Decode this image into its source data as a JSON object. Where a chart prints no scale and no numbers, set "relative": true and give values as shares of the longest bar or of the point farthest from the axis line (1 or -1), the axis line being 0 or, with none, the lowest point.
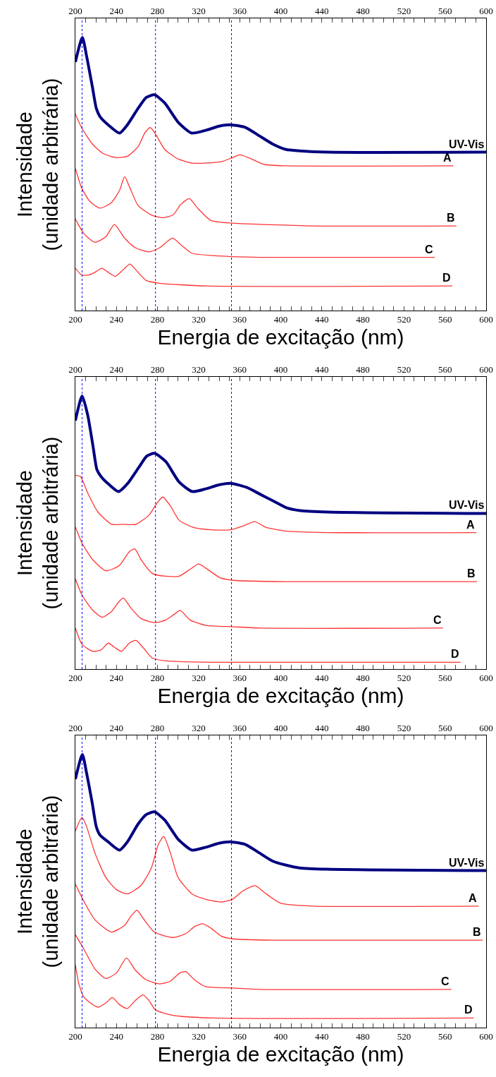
{
  "chart_data": [
    {
      "type": "line",
      "xlabel": "Energia de excitação (nm)",
      "ylabel": "Intensidade\n(unidade arbitrária)",
      "relative": true,
      "legend": false,
      "xlim": [
        200,
        600
      ],
      "x2lim": [
        200,
        600
      ],
      "xticks": [
        200,
        {
          "value": 210,
          "label": null
        },
        {
          "value": 220,
          "label": null
        },
        {
          "value": 230,
          "label": null
        },
        240,
        {
          "value": 250,
          "label": null
        },
        {
          "value": 260,
          "label": null
        },
        {
          "value": 270,
          "label": null
        },
        280,
        {
          "value": 290,
          "label": null
        },
        {
          "value": 300,
          "label": null
        },
        {
          "value": 310,
          "label": null
        },
        320,
        {
          "value": 330,
          "label": null
        },
        {
          "value": 340,
          "label": null
        },
        {
          "value": 350,
          "label": null
        },
        360,
        {
          "value": 370,
          "label": null
        },
        {
          "value": 380,
          "label": null
        },
        {
          "value": 390,
          "label": null
        },
        400,
        {
          "value": 410,
          "label": null
        },
        {
          "value": 420,
          "label": null
        },
        {
          "value": 430,
          "label": null
        },
        440,
        {
          "value": 450,
          "label": null
        },
        {
          "value": 460,
          "label": null
        },
        {
          "value": 470,
          "label": null
        },
        480,
        {
          "value": 490,
          "label": null
        },
        {
          "value": 500,
          "label": null
        },
        {
          "value": 510,
          "label": null
        },
        520,
        {
          "value": 530,
          "label": null
        },
        {
          "value": 540,
          "label": null
        },
        {
          "value": 550,
          "label": null
        },
        560,
        {
          "value": 570,
          "label": null
        },
        {
          "value": 580,
          "label": null
        },
        {
          "value": 590,
          "label": null
        },
        600
      ],
      "x2ticks": [
        200,
        {
          "value": 210,
          "label": null
        },
        {
          "value": 220,
          "label": null
        },
        {
          "value": 230,
          "label": null
        },
        240,
        {
          "value": 250,
          "label": null
        },
        {
          "value": 260,
          "label": null
        },
        {
          "value": 270,
          "label": null
        },
        280,
        {
          "value": 290,
          "label": null
        },
        {
          "value": 300,
          "label": null
        },
        {
          "value": 310,
          "label": null
        },
        320,
        {
          "value": 330,
          "label": null
        },
        {
          "value": 340,
          "label": null
        },
        {
          "value": 350,
          "label": null
        },
        360,
        {
          "value": 370,
          "label": null
        },
        {
          "value": 380,
          "label": null
        },
        {
          "value": 390,
          "label": null
        },
        400,
        {
          "value": 410,
          "label": null
        },
        {
          "value": 420,
          "label": null
        },
        {
          "value": 430,
          "label": null
        },
        440,
        {
          "value": 450,
          "label": null
        },
        {
          "value": 460,
          "label": null
        },
        {
          "value": 470,
          "label": null
        },
        480,
        {
          "value": 490,
          "label": null
        },
        {
          "value": 500,
          "label": null
        },
        {
          "value": 510,
          "label": null
        },
        520,
        {
          "value": 530,
          "label": null
        },
        {
          "value": 540,
          "label": null
        },
        {
          "value": 550,
          "label": null
        },
        560,
        {
          "value": 570,
          "label": null
        },
        {
          "value": 580,
          "label": null
        },
        {
          "value": 590,
          "label": null
        },
        600
      ],
      "ref_lines": [
        {
          "axis": "x",
          "value": 206.5,
          "color": "#0000ff",
          "line_style": "dotted"
        },
        {
          "axis": "x",
          "value": 278,
          "color": "#0000ff",
          "line_style": "dotted"
        },
        {
          "axis": "x",
          "value": 352,
          "color": "#0000ff",
          "line_style": "dotted"
        }
      ],
      "series": [
        {
          "name": "UV-Vis",
          "color": "#000080",
          "x": [
            200,
            206.8,
            211,
            216.5,
            220.4,
            224,
            232,
            243,
            250.6,
            261,
            269,
            277,
            287,
            300,
            313,
            327,
            340,
            352,
            366,
            379,
            392,
            405,
            418,
            444.5,
            600
          ],
          "values": [
            0.91,
            1.0,
            0.93,
            0.82,
            0.74,
            0.71,
            0.68,
            0.65,
            0.68,
            0.74,
            0.78,
            0.79,
            0.76,
            0.69,
            0.65,
            0.66,
            0.675,
            0.68,
            0.67,
            0.64,
            0.61,
            0.59,
            0.585,
            0.58,
            0.58
          ]
        },
        {
          "name": "A",
          "color": "#ff3333",
          "x": [
            200,
            206,
            216.5,
            227,
            240,
            250.6,
            261,
            267.6,
            273,
            279,
            287,
            300,
            313.5,
            326.6,
            342,
            353,
            360,
            368.5,
            384,
            405,
            568
          ],
          "values": [
            0.72,
            0.67,
            0.61,
            0.575,
            0.56,
            0.565,
            0.6,
            0.65,
            0.67,
            0.64,
            0.59,
            0.555,
            0.54,
            0.54,
            0.545,
            0.56,
            0.57,
            0.56,
            0.535,
            0.53,
            0.53
          ]
        },
        {
          "name": "B",
          "color": "#ff3333",
          "x": [
            200,
            206,
            214,
            224,
            235,
            243,
            248,
            253,
            261,
            274,
            285,
            295,
            303,
            311,
            319,
            332,
            353,
            431,
            571
          ],
          "values": [
            0.52,
            0.45,
            0.4,
            0.375,
            0.395,
            0.44,
            0.49,
            0.45,
            0.385,
            0.35,
            0.34,
            0.35,
            0.39,
            0.41,
            0.375,
            0.33,
            0.32,
            0.31,
            0.31
          ]
        },
        {
          "name": "C",
          "color": "#ff3333",
          "x": [
            200,
            208.6,
            219,
            229.6,
            238,
            248,
            258.5,
            271.6,
            282,
            294.6,
            303,
            313.5,
            340,
            379,
            550
          ],
          "values": [
            0.335,
            0.28,
            0.25,
            0.27,
            0.315,
            0.265,
            0.23,
            0.215,
            0.23,
            0.265,
            0.24,
            0.21,
            0.2,
            0.195,
            0.195
          ]
        },
        {
          "name": "D",
          "color": "#ff3333",
          "x": [
            200,
            206,
            212.6,
            219,
            225.7,
            232,
            238.8,
            246.7,
            253,
            259.8,
            269,
            282,
            326.6,
            567
          ],
          "values": [
            0.155,
            0.13,
            0.13,
            0.14,
            0.155,
            0.14,
            0.125,
            0.15,
            0.17,
            0.145,
            0.11,
            0.1,
            0.09,
            0.09
          ]
        }
      ]
    },
    {
      "type": "line",
      "xlabel": "Energia de excitação (nm)",
      "ylabel": "Intensidade\n(unidade arbitrária)",
      "relative": true,
      "legend": false,
      "xlim": [
        200,
        600
      ],
      "x2lim": [
        200,
        600
      ],
      "xticks": [
        200,
        {
          "value": 210,
          "label": null
        },
        {
          "value": 220,
          "label": null
        },
        {
          "value": 230,
          "label": null
        },
        240,
        {
          "value": 250,
          "label": null
        },
        {
          "value": 260,
          "label": null
        },
        {
          "value": 270,
          "label": null
        },
        280,
        {
          "value": 290,
          "label": null
        },
        {
          "value": 300,
          "label": null
        },
        {
          "value": 310,
          "label": null
        },
        320,
        {
          "value": 330,
          "label": null
        },
        {
          "value": 340,
          "label": null
        },
        {
          "value": 350,
          "label": null
        },
        360,
        {
          "value": 370,
          "label": null
        },
        {
          "value": 380,
          "label": null
        },
        {
          "value": 390,
          "label": null
        },
        400,
        {
          "value": 410,
          "label": null
        },
        {
          "value": 420,
          "label": null
        },
        {
          "value": 430,
          "label": null
        },
        440,
        {
          "value": 450,
          "label": null
        },
        {
          "value": 460,
          "label": null
        },
        {
          "value": 470,
          "label": null
        },
        480,
        {
          "value": 490,
          "label": null
        },
        {
          "value": 500,
          "label": null
        },
        {
          "value": 510,
          "label": null
        },
        520,
        {
          "value": 530,
          "label": null
        },
        {
          "value": 540,
          "label": null
        },
        {
          "value": 550,
          "label": null
        },
        560,
        {
          "value": 570,
          "label": null
        },
        {
          "value": 580,
          "label": null
        },
        {
          "value": 590,
          "label": null
        },
        600
      ],
      "x2ticks": [
        200,
        {
          "value": 210,
          "label": null
        },
        {
          "value": 220,
          "label": null
        },
        {
          "value": 230,
          "label": null
        },
        240,
        {
          "value": 250,
          "label": null
        },
        {
          "value": 260,
          "label": null
        },
        {
          "value": 270,
          "label": null
        },
        280,
        {
          "value": 290,
          "label": null
        },
        {
          "value": 300,
          "label": null
        },
        {
          "value": 310,
          "label": null
        },
        320,
        {
          "value": 330,
          "label": null
        },
        {
          "value": 340,
          "label": null
        },
        {
          "value": 350,
          "label": null
        },
        360,
        {
          "value": 370,
          "label": null
        },
        {
          "value": 380,
          "label": null
        },
        {
          "value": 390,
          "label": null
        },
        400,
        {
          "value": 410,
          "label": null
        },
        {
          "value": 420,
          "label": null
        },
        {
          "value": 430,
          "label": null
        },
        440,
        {
          "value": 450,
          "label": null
        },
        {
          "value": 460,
          "label": null
        },
        {
          "value": 470,
          "label": null
        },
        480,
        {
          "value": 490,
          "label": null
        },
        {
          "value": 500,
          "label": null
        },
        {
          "value": 510,
          "label": null
        },
        520,
        {
          "value": 530,
          "label": null
        },
        {
          "value": 540,
          "label": null
        },
        {
          "value": 550,
          "label": null
        },
        560,
        {
          "value": 570,
          "label": null
        },
        {
          "value": 580,
          "label": null
        },
        {
          "value": 590,
          "label": null
        },
        600
      ],
      "ref_lines": [
        {
          "axis": "x",
          "value": 206.5,
          "color": "#0000ff",
          "line_style": "dotted"
        },
        {
          "axis": "x",
          "value": 278,
          "color": "#0000ff",
          "line_style": "dotted"
        },
        {
          "axis": "x",
          "value": 352,
          "color": "#0000ff",
          "line_style": "dotted"
        }
      ],
      "series": [
        {
          "name": "UV-Vis",
          "color": "#000080",
          "x": [
            200,
            206.6,
            212,
            217,
            221,
            225,
            233,
            242,
            251,
            262,
            269.6,
            277,
            288,
            301,
            314,
            327,
            340.5,
            352,
            367,
            380,
            393,
            406,
            419,
            445.5,
            600
          ],
          "values": [
            0.91,
            1.0,
            0.93,
            0.82,
            0.73,
            0.705,
            0.675,
            0.65,
            0.68,
            0.74,
            0.78,
            0.79,
            0.76,
            0.685,
            0.65,
            0.66,
            0.675,
            0.68,
            0.665,
            0.64,
            0.615,
            0.59,
            0.58,
            0.575,
            0.57
          ]
        },
        {
          "name": "A",
          "color": "#ff3333",
          "x": [
            200,
            205,
            212,
            222,
            235.4,
            246,
            259,
            272,
            279,
            285,
            293,
            301,
            314,
            332.6,
            351,
            364,
            374.6,
            385,
            406,
            445.5,
            590.5
          ],
          "values": [
            0.71,
            0.705,
            0.645,
            0.575,
            0.53,
            0.53,
            0.53,
            0.565,
            0.605,
            0.63,
            0.595,
            0.545,
            0.52,
            0.51,
            0.51,
            0.525,
            0.54,
            0.52,
            0.505,
            0.5,
            0.5
          ]
        },
        {
          "name": "B",
          "color": "#ff3333",
          "x": [
            200,
            206.6,
            217,
            230,
            243,
            252.5,
            258,
            264,
            275,
            288,
            301,
            311.6,
            320,
            327,
            340.5,
            353.6,
            406,
            591
          ],
          "values": [
            0.52,
            0.46,
            0.4,
            0.36,
            0.38,
            0.43,
            0.44,
            0.4,
            0.35,
            0.34,
            0.34,
            0.365,
            0.385,
            0.37,
            0.335,
            0.325,
            0.32,
            0.32
          ]
        },
        {
          "name": "C",
          "color": "#ff3333",
          "x": [
            200,
            206.6,
            217,
            226,
            235,
            242,
            246.7,
            253.8,
            264,
            277.5,
            288,
            296,
            302,
            311.6,
            327,
            353.6,
            380,
            558
          ],
          "values": [
            0.33,
            0.27,
            0.215,
            0.19,
            0.21,
            0.245,
            0.26,
            0.225,
            0.185,
            0.17,
            0.18,
            0.2,
            0.215,
            0.18,
            0.16,
            0.155,
            0.15,
            0.15
          ]
        },
        {
          "name": "D",
          "color": "#ff3333",
          "x": [
            200,
            206.6,
            217,
            225,
            232,
            238,
            245,
            252.5,
            259,
            265.6,
            275,
            288,
            340.5,
            575
          ],
          "values": [
            0.15,
            0.09,
            0.065,
            0.07,
            0.095,
            0.08,
            0.065,
            0.095,
            0.105,
            0.08,
            0.04,
            0.03,
            0.025,
            0.025
          ]
        }
      ]
    },
    {
      "type": "line",
      "xlabel": "Energia de excitação (nm)",
      "ylabel": "Intensidade\n(unidade arbitrária)",
      "relative": true,
      "legend": false,
      "xlim": [
        200,
        600
      ],
      "x2lim": [
        200,
        600
      ],
      "xticks": [
        200,
        {
          "value": 210,
          "label": null
        },
        {
          "value": 220,
          "label": null
        },
        {
          "value": 230,
          "label": null
        },
        240,
        {
          "value": 250,
          "label": null
        },
        {
          "value": 260,
          "label": null
        },
        {
          "value": 270,
          "label": null
        },
        280,
        {
          "value": 290,
          "label": null
        },
        {
          "value": 300,
          "label": null
        },
        {
          "value": 310,
          "label": null
        },
        320,
        {
          "value": 330,
          "label": null
        },
        {
          "value": 340,
          "label": null
        },
        {
          "value": 350,
          "label": null
        },
        360,
        {
          "value": 370,
          "label": null
        },
        {
          "value": 380,
          "label": null
        },
        {
          "value": 390,
          "label": null
        },
        400,
        {
          "value": 410,
          "label": null
        },
        {
          "value": 420,
          "label": null
        },
        {
          "value": 430,
          "label": null
        },
        440,
        {
          "value": 450,
          "label": null
        },
        {
          "value": 460,
          "label": null
        },
        {
          "value": 470,
          "label": null
        },
        480,
        {
          "value": 490,
          "label": null
        },
        {
          "value": 500,
          "label": null
        },
        {
          "value": 510,
          "label": null
        },
        520,
        {
          "value": 530,
          "label": null
        },
        {
          "value": 540,
          "label": null
        },
        {
          "value": 550,
          "label": null
        },
        560,
        {
          "value": 570,
          "label": null
        },
        {
          "value": 580,
          "label": null
        },
        {
          "value": 590,
          "label": null
        },
        600
      ],
      "x2ticks": [
        200,
        {
          "value": 210,
          "label": null
        },
        {
          "value": 220,
          "label": null
        },
        {
          "value": 230,
          "label": null
        },
        240,
        {
          "value": 250,
          "label": null
        },
        {
          "value": 260,
          "label": null
        },
        {
          "value": 270,
          "label": null
        },
        280,
        {
          "value": 290,
          "label": null
        },
        {
          "value": 300,
          "label": null
        },
        {
          "value": 310,
          "label": null
        },
        320,
        {
          "value": 330,
          "label": null
        },
        {
          "value": 340,
          "label": null
        },
        {
          "value": 350,
          "label": null
        },
        360,
        {
          "value": 370,
          "label": null
        },
        {
          "value": 380,
          "label": null
        },
        {
          "value": 390,
          "label": null
        },
        400,
        {
          "value": 410,
          "label": null
        },
        {
          "value": 420,
          "label": null
        },
        {
          "value": 430,
          "label": null
        },
        440,
        {
          "value": 450,
          "label": null
        },
        {
          "value": 460,
          "label": null
        },
        {
          "value": 470,
          "label": null
        },
        480,
        {
          "value": 490,
          "label": null
        },
        {
          "value": 500,
          "label": null
        },
        {
          "value": 510,
          "label": null
        },
        520,
        {
          "value": 530,
          "label": null
        },
        {
          "value": 540,
          "label": null
        },
        {
          "value": 550,
          "label": null
        },
        560,
        {
          "value": 570,
          "label": null
        },
        {
          "value": 580,
          "label": null
        },
        {
          "value": 590,
          "label": null
        },
        600
      ],
      "ref_lines": [
        {
          "axis": "x",
          "value": 206.5,
          "color": "#0000ff",
          "line_style": "dotted"
        },
        {
          "axis": "x",
          "value": 278,
          "color": "#0000ff",
          "line_style": "dotted"
        },
        {
          "axis": "x",
          "value": 352,
          "color": "#0000ff",
          "line_style": "dotted"
        }
      ],
      "series": [
        {
          "name": "UV-Vis",
          "color": "#000080",
          "x": [
            200,
            206.8,
            211,
            216.5,
            220.4,
            224,
            232,
            243,
            250.6,
            261,
            269,
            277,
            287,
            300,
            313.5,
            326.6,
            340,
            352,
            366,
            379,
            392,
            405,
            418,
            444.5,
            600
          ],
          "values": [
            0.91,
            1.0,
            0.93,
            0.82,
            0.735,
            0.705,
            0.68,
            0.65,
            0.68,
            0.745,
            0.78,
            0.79,
            0.76,
            0.69,
            0.65,
            0.66,
            0.675,
            0.68,
            0.67,
            0.64,
            0.61,
            0.595,
            0.585,
            0.58,
            0.575
          ]
        },
        {
          "name": "A",
          "color": "#ff3333",
          "x": [
            200,
            206.5,
            211,
            219,
            229.6,
            240,
            250.6,
            263.7,
            274,
            280.7,
            286,
            292.5,
            300,
            313.5,
            326.6,
            342,
            353,
            363,
            375,
            384,
            400,
            431,
            592.6
          ],
          "values": [
            0.72,
            0.77,
            0.735,
            0.64,
            0.55,
            0.505,
            0.49,
            0.52,
            0.585,
            0.67,
            0.7,
            0.64,
            0.55,
            0.49,
            0.47,
            0.46,
            0.47,
            0.5,
            0.52,
            0.495,
            0.455,
            0.445,
            0.445
          ]
        },
        {
          "name": "B",
          "color": "#ff3333",
          "x": [
            200,
            208.6,
            219,
            235,
            248,
            254.5,
            260,
            266,
            276.8,
            295,
            308,
            316,
            324,
            332,
            342,
            353,
            392,
            596.6
          ],
          "values": [
            0.525,
            0.46,
            0.395,
            0.35,
            0.375,
            0.41,
            0.43,
            0.4,
            0.35,
            0.33,
            0.345,
            0.37,
            0.38,
            0.364,
            0.335,
            0.325,
            0.32,
            0.32
          ]
        },
        {
          "name": "C",
          "color": "#ff3333",
          "x": [
            200,
            208.6,
            219,
            229.6,
            240,
            249.8,
            258.5,
            269,
            282,
            292.5,
            301.7,
            307.5,
            316,
            326.6,
            353,
            379,
            566
          ],
          "values": [
            0.34,
            0.285,
            0.215,
            0.18,
            0.2,
            0.255,
            0.21,
            0.175,
            0.16,
            0.17,
            0.2,
            0.205,
            0.175,
            0.15,
            0.145,
            0.14,
            0.14
          ]
        },
        {
          "name": "D",
          "color": "#ff3333",
          "x": [
            200,
            203.4,
            208.6,
            221.8,
            229.6,
            236,
            242.7,
            250.6,
            258.5,
            265.8,
            271.5,
            278,
            295,
            334.5,
            588
          ],
          "values": [
            0.23,
            0.16,
            0.11,
            0.075,
            0.09,
            0.11,
            0.085,
            0.07,
            0.1,
            0.12,
            0.1,
            0.065,
            0.045,
            0.035,
            0.035
          ]
        }
      ]
    }
  ]
}
